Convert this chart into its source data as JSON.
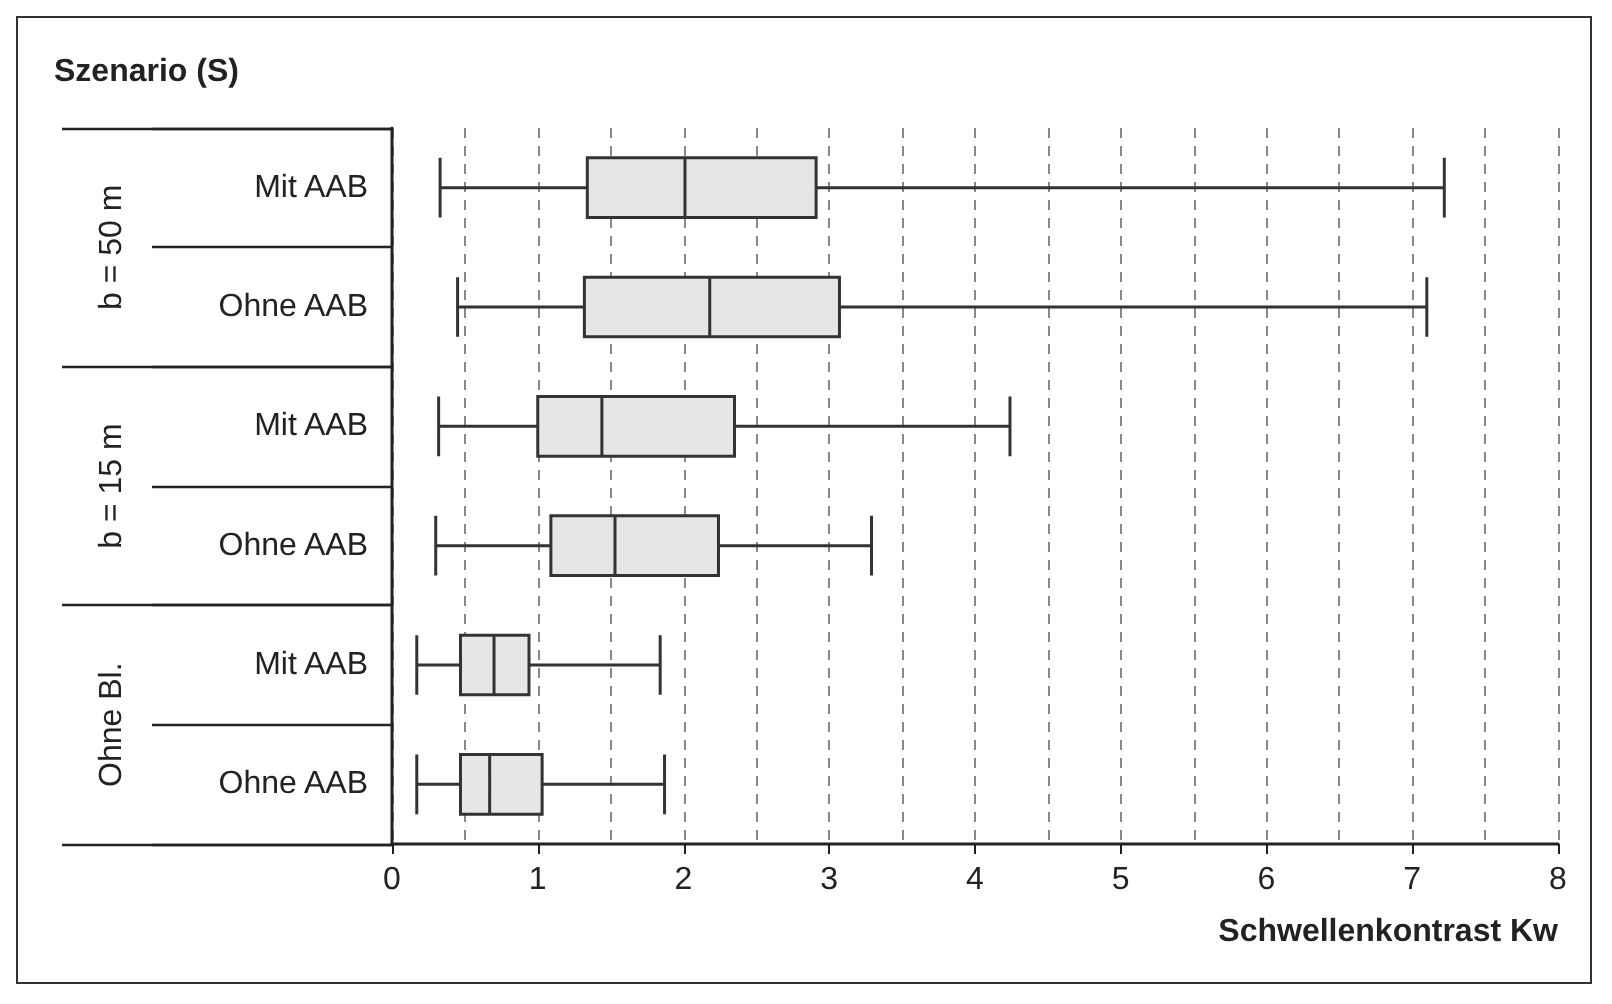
{
  "chart_data": {
    "type": "box",
    "title": "Szenario (S)",
    "xlabel": "Schwellenkontrast Kw",
    "orientation": "horizontal",
    "categories": [
      "Mit AAB",
      "Ohne AAB",
      "Mit AAB",
      "Ohne AAB",
      "Mit AAB",
      "Ohne AAB"
    ],
    "annotations": [
      "b = 50 m",
      "b = 15 m",
      "Ohne Bl."
    ],
    "color": "#e6e6e6",
    "boxes": [
      {
        "low": 0.33,
        "q1": 1.34,
        "median": 2.01,
        "q3": 2.91,
        "high": 7.22
      },
      {
        "low": 0.45,
        "q1": 1.32,
        "median": 2.18,
        "q3": 3.07,
        "high": 7.1
      },
      {
        "low": 0.32,
        "q1": 1.0,
        "median": 1.44,
        "q3": 2.35,
        "high": 4.24
      },
      {
        "low": 0.3,
        "q1": 1.09,
        "median": 1.53,
        "q3": 2.24,
        "high": 3.29
      },
      {
        "low": 0.17,
        "q1": 0.47,
        "median": 0.7,
        "q3": 0.94,
        "high": 1.84
      },
      {
        "low": 0.17,
        "q1": 0.47,
        "median": 0.67,
        "q3": 1.03,
        "high": 1.87
      }
    ],
    "xlim": [
      0,
      8
    ],
    "xticks": [
      0,
      1,
      2,
      3,
      4,
      5,
      6,
      7,
      8
    ],
    "grid": "x"
  }
}
